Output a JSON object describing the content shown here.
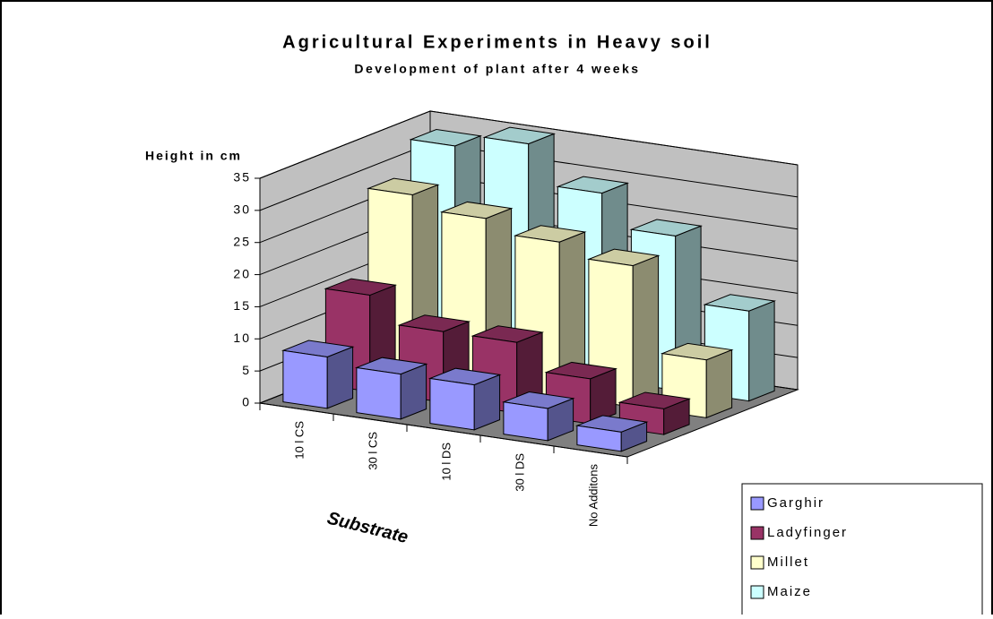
{
  "chart_data": {
    "type": "bar3d",
    "title": "Agricultural Experiments in Heavy soil",
    "subtitle": "Development of plant after 4 weeks",
    "y_label": "Height in cm",
    "x_label": "Substrate",
    "categories": [
      "10 l CS",
      "30 l CS",
      "10 l DS",
      "30 l DS",
      "No Additons"
    ],
    "series": [
      {
        "name": "Garghir",
        "color": "#9999ff",
        "values": [
          8,
          7,
          7,
          5,
          3
        ]
      },
      {
        "name": "Ladyfinger",
        "color": "#993366",
        "values": [
          15,
          11,
          11,
          7,
          4
        ]
      },
      {
        "name": "Millet",
        "color": "#ffffcc",
        "values": [
          28,
          26,
          24,
          22,
          9
        ]
      },
      {
        "name": "Maize",
        "color": "#ccffff",
        "values": [
          33,
          35,
          29,
          24,
          14
        ]
      }
    ],
    "ylim": [
      0,
      35
    ],
    "yticks": [
      0,
      5,
      10,
      15,
      20,
      25,
      30,
      35
    ],
    "grid": true,
    "legend": "bottom-right"
  }
}
